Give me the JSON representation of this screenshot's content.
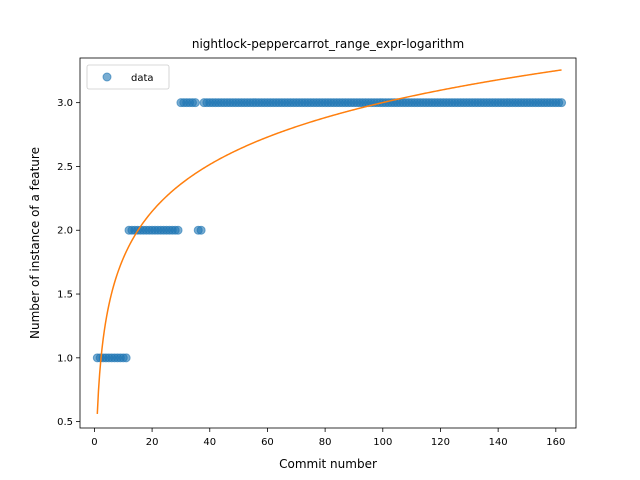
{
  "chart_data": {
    "type": "scatter",
    "title": "nightlock-peppercarrot_range_expr-logarithm",
    "xlabel": "Commit number",
    "ylabel": "Number of instance of a feature",
    "xlim": [
      -5,
      167
    ],
    "ylim": [
      0.45,
      3.35
    ],
    "xticks": [
      0,
      20,
      40,
      60,
      80,
      100,
      120,
      140,
      160
    ],
    "yticks": [
      0.5,
      1.0,
      1.5,
      2.0,
      2.5,
      3.0
    ],
    "grid": false,
    "legend_position": "top-left",
    "colors": {
      "data": "#1f77b4",
      "fit": "#ff7f0e"
    },
    "series": [
      {
        "name": "data",
        "kind": "scatter",
        "segments": [
          {
            "x_start": 1,
            "x_end": 11,
            "y": 1.0
          },
          {
            "x_start": 12,
            "x_end": 29,
            "y": 2.0
          },
          {
            "x_start": 30,
            "x_end": 35,
            "y": 3.0
          },
          {
            "x_start": 36,
            "x_end": 37,
            "y": 2.0
          },
          {
            "x_start": 38,
            "x_end": 162,
            "y": 3.0
          }
        ]
      },
      {
        "kind": "line",
        "model": "logarithmic",
        "a": 0.56,
        "b": 0.53,
        "x_range": [
          1,
          162
        ]
      }
    ]
  }
}
